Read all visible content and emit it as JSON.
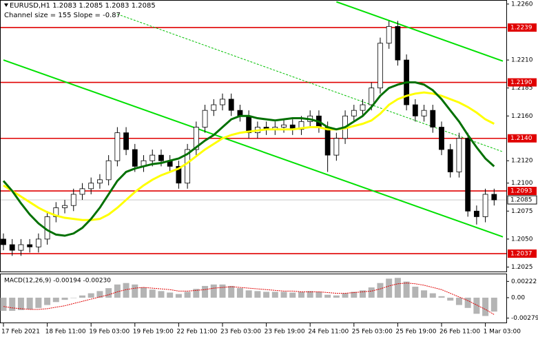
{
  "header": {
    "title": "EURUSD,H1 1.2083 1.2085 1.2083 1.2085",
    "subtitle": "Channel size = 155 Slope = -0.87"
  },
  "chart_data": [
    {
      "type": "candlestick",
      "categories": [
        "17 Feb 2021",
        null,
        null,
        null,
        null,
        "18 Feb 11:00",
        null,
        null,
        null,
        null,
        "19 Feb 03:00",
        null,
        null,
        null,
        null,
        "19 Feb 19:00",
        null,
        null,
        null,
        null,
        "22 Feb 11:00",
        null,
        null,
        null,
        null,
        "23 Feb 03:00",
        null,
        null,
        null,
        null,
        "23 Feb 19:00",
        null,
        null,
        null,
        null,
        "24 Feb 11:00",
        null,
        null,
        null,
        null,
        "25 Feb 03:00",
        null,
        null,
        null,
        null,
        "25 Feb 19:00",
        null,
        null,
        null,
        null,
        "26 Feb 11:00",
        null,
        null,
        null,
        null,
        "1 Mar 03:00",
        null
      ],
      "open": [
        1.205,
        1.2045,
        1.204,
        1.2045,
        1.2043,
        1.205,
        1.207,
        1.2078,
        1.208,
        1.209,
        1.2095,
        1.21,
        1.2103,
        1.212,
        1.2145,
        1.213,
        1.2115,
        1.212,
        1.2125,
        1.212,
        1.2115,
        1.21,
        1.213,
        1.215,
        1.2165,
        1.217,
        1.2175,
        1.2165,
        1.216,
        1.2145,
        1.215,
        1.2148,
        1.215,
        1.2152,
        1.2148,
        1.2155,
        1.216,
        1.215,
        1.2125,
        1.214,
        1.216,
        1.2165,
        1.217,
        1.2185,
        1.2225,
        1.224,
        1.221,
        1.217,
        1.216,
        1.2165,
        1.215,
        1.213,
        1.211,
        1.214,
        1.2075,
        1.207,
        1.209
      ],
      "high": [
        1.2055,
        1.205,
        1.205,
        1.205,
        1.2055,
        1.2075,
        1.2083,
        1.2085,
        1.2095,
        1.21,
        1.2105,
        1.2108,
        1.2125,
        1.215,
        1.215,
        1.2135,
        1.2125,
        1.213,
        1.213,
        1.2125,
        1.212,
        1.2135,
        1.2155,
        1.217,
        1.2175,
        1.218,
        1.218,
        1.217,
        1.2165,
        1.2155,
        1.2155,
        1.2155,
        1.2157,
        1.2157,
        1.216,
        1.2165,
        1.2165,
        1.2155,
        1.2145,
        1.2165,
        1.217,
        1.2175,
        1.219,
        1.223,
        1.2245,
        1.2245,
        1.2215,
        1.2175,
        1.217,
        1.217,
        1.2155,
        1.2135,
        1.2145,
        1.2145,
        1.208,
        1.2095,
        1.2095
      ],
      "low": [
        1.204,
        1.2035,
        1.2035,
        1.2038,
        1.2038,
        1.2045,
        1.2065,
        1.2073,
        1.2075,
        1.2085,
        1.209,
        1.2095,
        1.2098,
        1.2115,
        1.2125,
        1.211,
        1.211,
        1.2115,
        1.2115,
        1.211,
        1.2095,
        1.2095,
        1.2125,
        1.2145,
        1.216,
        1.2165,
        1.216,
        1.2155,
        1.214,
        1.214,
        1.2143,
        1.2143,
        1.2145,
        1.2143,
        1.2143,
        1.215,
        1.2145,
        1.211,
        1.212,
        1.2135,
        1.2155,
        1.216,
        1.2165,
        1.218,
        1.222,
        1.2205,
        1.2165,
        1.2155,
        1.2155,
        1.2145,
        1.2125,
        1.2105,
        1.2105,
        1.207,
        1.2063,
        1.2065,
        1.208
      ],
      "close": [
        1.2045,
        1.204,
        1.2045,
        1.2043,
        1.205,
        1.207,
        1.2078,
        1.208,
        1.209,
        1.2095,
        1.21,
        1.2103,
        1.212,
        1.2145,
        1.213,
        1.2115,
        1.212,
        1.2125,
        1.212,
        1.2115,
        1.21,
        1.213,
        1.215,
        1.2165,
        1.217,
        1.2175,
        1.2165,
        1.216,
        1.2145,
        1.215,
        1.2148,
        1.215,
        1.2152,
        1.2148,
        1.2155,
        1.216,
        1.215,
        1.2125,
        1.214,
        1.216,
        1.2165,
        1.217,
        1.2185,
        1.2225,
        1.224,
        1.221,
        1.217,
        1.216,
        1.2165,
        1.215,
        1.213,
        1.211,
        1.214,
        1.2075,
        1.207,
        1.209,
        1.2085
      ],
      "moving_averages": [
        {
          "color": "#ffff00",
          "values": [
            1.2098,
            1.2093,
            1.2088,
            1.2083,
            1.2078,
            1.2074,
            1.2071,
            1.2069,
            1.2068,
            1.2067,
            1.2067,
            1.2068,
            1.2072,
            1.2078,
            1.2085,
            1.2092,
            1.2098,
            1.2103,
            1.2107,
            1.211,
            1.2113,
            1.2118,
            1.2124,
            1.213,
            1.2135,
            1.214,
            1.2143,
            1.2145,
            1.2146,
            1.2147,
            1.2148,
            1.2148,
            1.2148,
            1.2148,
            1.2149,
            1.215,
            1.215,
            1.2148,
            1.2148,
            1.2149,
            1.2151,
            1.2153,
            1.2156,
            1.2162,
            1.217,
            1.2175,
            1.2178,
            1.218,
            1.2181,
            1.218,
            1.2178,
            1.2175,
            1.2172,
            1.2168,
            1.2163,
            1.2157,
            1.2153
          ]
        },
        {
          "color": "#007000",
          "values": [
            1.2102,
            1.2093,
            1.2082,
            1.2072,
            1.2064,
            1.2058,
            1.2054,
            1.2053,
            1.2055,
            1.206,
            1.2068,
            1.2078,
            1.209,
            1.2102,
            1.211,
            1.2113,
            1.2115,
            1.2117,
            1.2118,
            1.212,
            1.2122,
            1.2126,
            1.2132,
            1.2138,
            1.2143,
            1.215,
            1.2157,
            1.216,
            1.216,
            1.2158,
            1.2157,
            1.2156,
            1.2157,
            1.2158,
            1.2158,
            1.2157,
            1.2155,
            1.215,
            1.2148,
            1.215,
            1.2155,
            1.216,
            1.2168,
            1.2178,
            1.2185,
            1.2188,
            1.219,
            1.219,
            1.2188,
            1.2183,
            1.2175,
            1.2165,
            1.2155,
            1.2143,
            1.2132,
            1.2122,
            1.2115
          ]
        }
      ],
      "channels": [
        {
          "color": "#00e000",
          "dashed": false,
          "x": [
            0,
            57
          ],
          "y": [
            1.221,
            1.2052
          ]
        },
        {
          "color": "#00e000",
          "dashed": false,
          "x": [
            38,
            57
          ],
          "y": [
            1.2262,
            1.2209
          ]
        },
        {
          "color": "#00c000",
          "dashed": true,
          "x": [
            13,
            57
          ],
          "y": [
            1.2251,
            1.2128
          ]
        }
      ],
      "levels": [
        1.2239,
        {
          "value": 1.219,
          "label": "1.2190"
        },
        {
          "value": 1.214,
          "label": "1.2140"
        },
        1.2093,
        1.2037
      ],
      "level_color": "#e00000",
      "last": 1.2085,
      "ylim": [
        1.2021,
        1.2263
      ],
      "yticks": [
        {
          "value": 1.226,
          "label": "1.2260"
        },
        {
          "value": 1.221,
          "label": "1.2210"
        },
        1.2185,
        {
          "value": 1.216,
          "label": "1.2160"
        },
        {
          "value": 1.212,
          "label": "1.2120"
        },
        {
          "value": 1.21,
          "label": "1.2100"
        },
        1.2075,
        {
          "value": 1.205,
          "label": "1.2050"
        },
        1.2025
      ]
    },
    {
      "type": "macd",
      "label": "MACD(12,26,9) -0.00194 -0.00230",
      "histogram": [
        -0.0018,
        -0.0018,
        -0.0017,
        -0.0016,
        -0.0014,
        -0.001,
        -0.0006,
        -0.0003,
        0.0,
        0.0003,
        0.0006,
        0.0009,
        0.0013,
        0.0018,
        0.002,
        0.0018,
        0.0014,
        0.0011,
        0.0009,
        0.0007,
        0.0005,
        0.0008,
        0.0012,
        0.0016,
        0.0018,
        0.0018,
        0.0016,
        0.0013,
        0.001,
        0.0009,
        0.0008,
        0.0008,
        0.0008,
        0.0007,
        0.0008,
        0.0009,
        0.0008,
        0.0004,
        0.0003,
        0.0006,
        0.0008,
        0.001,
        0.0014,
        0.002,
        0.0026,
        0.0027,
        0.0022,
        0.0015,
        0.001,
        0.0006,
        0.0002,
        -0.0004,
        -0.001,
        -0.0014,
        -0.0022,
        -0.0025,
        -0.0019
      ],
      "histogram_color": "#b4b4b4",
      "signal": [
        -0.0012,
        -0.0014,
        -0.0015,
        -0.0016,
        -0.0016,
        -0.0015,
        -0.0013,
        -0.0011,
        -0.0008,
        -0.0005,
        -0.0002,
        0.0001,
        0.0004,
        0.0008,
        0.0011,
        0.0013,
        0.0014,
        0.0013,
        0.0012,
        0.0011,
        0.0009,
        0.0009,
        0.001,
        0.0011,
        0.0013,
        0.0014,
        0.0015,
        0.0014,
        0.0013,
        0.0012,
        0.0011,
        0.001,
        0.0009,
        0.0009,
        0.0008,
        0.0008,
        0.0008,
        0.0007,
        0.0006,
        0.0006,
        0.0007,
        0.0008,
        0.0009,
        0.0012,
        0.0016,
        0.0019,
        0.002,
        0.0019,
        0.0017,
        0.0014,
        0.0011,
        0.0006,
        0.0001,
        -0.0004,
        -0.001,
        -0.0016,
        -0.0023
      ],
      "signal_color": "#e00000",
      "ylim": [
        -0.0033,
        0.0031
      ],
      "yticks": [
        0.00222,
        {
          "value": 0,
          "label": "0.00"
        },
        -0.00279
      ]
    }
  ]
}
